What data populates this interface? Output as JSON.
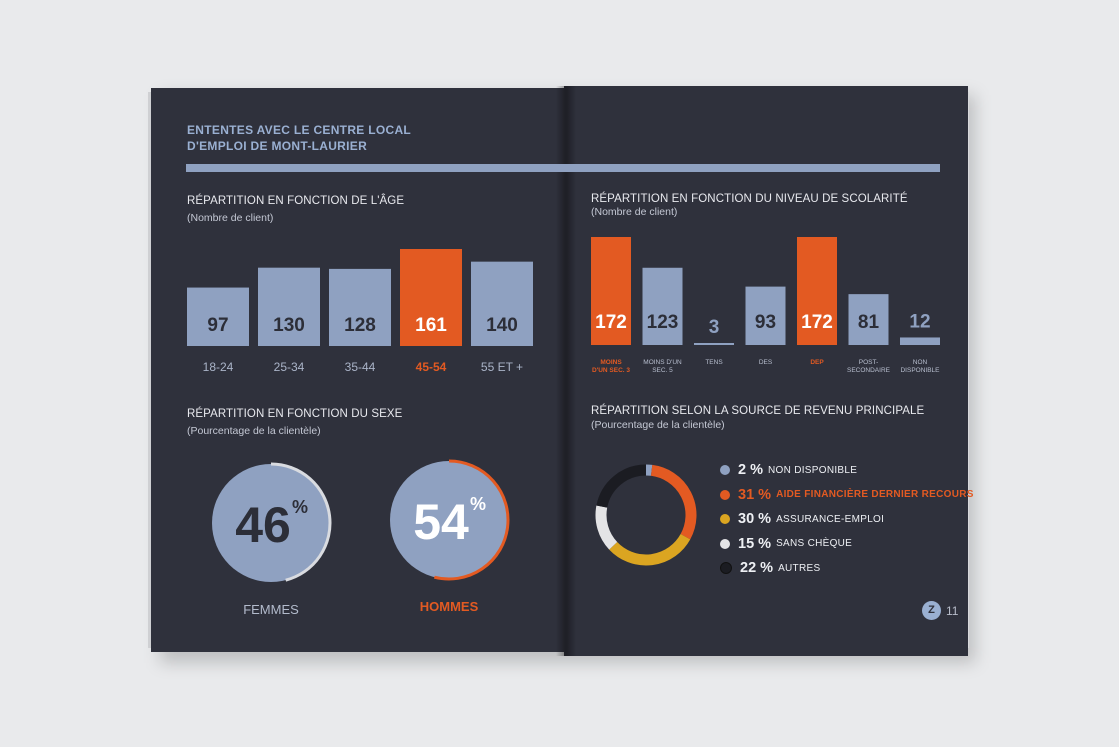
{
  "section": {
    "title_line1": "ENTENTES AVEC LE CENTRE LOCAL",
    "title_line2": "D'EMPLOI DE MONT-LAURIER"
  },
  "colors": {
    "page_bg": "#2f313c",
    "blue": "#8fa1c1",
    "orange": "#e35a22",
    "yellow": "#dba521",
    "white": "#e4e4e6",
    "black": "#1b1c22",
    "bar_text_dark": "#2c2e38"
  },
  "age_chart": {
    "title": "RÉPARTITION EN FONCTION DE L'ÂGE",
    "subtitle": "(Nombre de client)"
  },
  "school_chart": {
    "title": "RÉPARTITION EN FONCTION DU NIVEAU DE SCOLARITÉ",
    "subtitle": "(Nombre de client)"
  },
  "sex_chart": {
    "title": "RÉPARTITION EN FONCTION DU SEXE",
    "subtitle": "(Pourcentage de la clientèle)"
  },
  "income_chart": {
    "title": "RÉPARTITION SELON LA SOURCE DE REVENU PRINCIPALE",
    "subtitle": "(Pourcentage de la clientèle)"
  },
  "chart_data": [
    {
      "type": "bar",
      "title": "RÉPARTITION EN FONCTION DE L'ÂGE",
      "subtitle": "(Nombre de client)",
      "categories": [
        "18-24",
        "25-34",
        "35-44",
        "45-54",
        "55 ET +"
      ],
      "values": [
        97,
        130,
        128,
        161,
        140
      ],
      "highlight": [
        false,
        false,
        false,
        true,
        false
      ]
    },
    {
      "type": "bar",
      "title": "RÉPARTITION EN FONCTION DU NIVEAU DE SCOLARITÉ",
      "subtitle": "(Nombre de client)",
      "categories": [
        [
          "MOINS",
          "D'UN SEC. 3"
        ],
        [
          "MOINS D'UN",
          "SEC. 5"
        ],
        [
          "TENS"
        ],
        [
          "DES"
        ],
        [
          "DEP"
        ],
        [
          "POST-",
          "SECONDAIRE"
        ],
        [
          "NON",
          "DISPONIBLE"
        ]
      ],
      "values": [
        172,
        123,
        3,
        93,
        172,
        81,
        12
      ],
      "highlight": [
        true,
        false,
        false,
        false,
        true,
        false,
        false
      ]
    },
    {
      "type": "pie",
      "title": "RÉPARTITION EN FONCTION DU SEXE",
      "subtitle": "(Pourcentage de la clientèle)",
      "categories": [
        "FEMMES",
        "HOMMES"
      ],
      "values": [
        46,
        54
      ],
      "unit": "%",
      "highlight": [
        false,
        true
      ]
    },
    {
      "type": "pie",
      "title": "RÉPARTITION SELON LA SOURCE DE REVENU PRINCIPALE",
      "subtitle": "(Pourcentage de la clientèle)",
      "categories": [
        "NON DISPONIBLE",
        "AIDE FINANCIÈRE DERNIER RECOURS",
        "ASSURANCE-EMPLOI",
        "SANS CHÈQUE",
        "AUTRES"
      ],
      "values": [
        2,
        31,
        30,
        15,
        22
      ],
      "value_labels": [
        "2 %",
        "31 %",
        "30 %",
        "15 %",
        "22 %"
      ],
      "colors": [
        "#8fa1c1",
        "#e35a22",
        "#dba521",
        "#e4e4e6",
        "#1b1c22"
      ],
      "highlight": [
        false,
        true,
        false,
        false,
        false
      ]
    }
  ],
  "footer": {
    "logo": "Z",
    "page_number": "11"
  }
}
